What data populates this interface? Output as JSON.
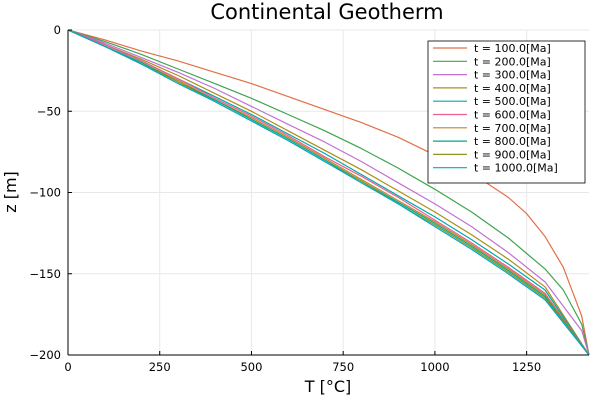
{
  "chart_data": {
    "type": "line",
    "title": "Continental Geotherm",
    "xlabel": "T [°C]",
    "ylabel": "z [m]",
    "xlim": [
      0,
      1420
    ],
    "ylim": [
      -200,
      0
    ],
    "xticks": [
      0,
      250,
      500,
      750,
      1000,
      1250
    ],
    "yticks": [
      0,
      -50,
      -100,
      -150,
      -200
    ],
    "xtick_labels": [
      "0",
      "250",
      "500",
      "750",
      "1000",
      "1250"
    ],
    "ytick_labels": [
      "0",
      "−50",
      "−100",
      "−150",
      "−200"
    ],
    "grid": true,
    "legend_position": "top-right",
    "series": [
      {
        "name": "t = 100.0[Ma]",
        "color": "#e26f46",
        "x": [
          0,
          100,
          200,
          300,
          400,
          500,
          600,
          700,
          800,
          900,
          1000,
          1100,
          1200,
          1250,
          1300,
          1350,
          1400,
          1420
        ],
        "z": [
          0,
          -6,
          -13,
          -19,
          -26,
          -33,
          -41,
          -49,
          -57,
          -66,
          -77,
          -88,
          -103,
          -113,
          -127,
          -146,
          -176,
          -200
        ]
      },
      {
        "name": "t = 200.0[Ma]",
        "color": "#3da44d",
        "x": [
          0,
          100,
          200,
          300,
          400,
          500,
          600,
          700,
          800,
          900,
          1000,
          1100,
          1200,
          1300,
          1350,
          1400,
          1420
        ],
        "z": [
          0,
          -7,
          -15,
          -24,
          -33,
          -42,
          -52,
          -62,
          -73,
          -85,
          -98,
          -112,
          -128,
          -147,
          -160,
          -181,
          -200
        ]
      },
      {
        "name": "t = 300.0[Ma]",
        "color": "#c271d2",
        "x": [
          0,
          100,
          200,
          300,
          400,
          500,
          600,
          700,
          800,
          900,
          1000,
          1100,
          1200,
          1300,
          1400,
          1420
        ],
        "z": [
          0,
          -8,
          -17,
          -26,
          -36,
          -47,
          -58,
          -69,
          -81,
          -94,
          -107,
          -121,
          -137,
          -155,
          -185,
          -200
        ]
      },
      {
        "name": "t = 400.0[Ma]",
        "color": "#ac8d18",
        "x": [
          0,
          100,
          200,
          300,
          400,
          500,
          600,
          700,
          800,
          900,
          1000,
          1100,
          1200,
          1300,
          1420
        ],
        "z": [
          0,
          -9,
          -18,
          -28,
          -39,
          -50,
          -62,
          -74,
          -86,
          -99,
          -112,
          -126,
          -141,
          -158,
          -200
        ]
      },
      {
        "name": "t = 500.0[Ma]",
        "color": "#00a9ad",
        "x": [
          0,
          100,
          200,
          300,
          400,
          500,
          600,
          700,
          800,
          900,
          1000,
          1100,
          1200,
          1300,
          1420
        ],
        "z": [
          0,
          -9,
          -19,
          -30,
          -41,
          -52,
          -64,
          -76,
          -89,
          -102,
          -115,
          -129,
          -144,
          -160,
          -200
        ]
      },
      {
        "name": "t = 600.0[Ma]",
        "color": "#ed5e93",
        "x": [
          0,
          100,
          200,
          300,
          400,
          500,
          600,
          700,
          800,
          900,
          1000,
          1100,
          1200,
          1300,
          1420
        ],
        "z": [
          0,
          -9,
          -19,
          -30,
          -42,
          -53,
          -65,
          -78,
          -90,
          -103,
          -117,
          -131,
          -146,
          -162,
          -200
        ]
      },
      {
        "name": "t = 700.0[Ma]",
        "color": "#c68225",
        "x": [
          0,
          100,
          200,
          300,
          400,
          500,
          600,
          700,
          800,
          900,
          1000,
          1100,
          1200,
          1300,
          1420
        ],
        "z": [
          0,
          -10,
          -20,
          -31,
          -43,
          -54,
          -66,
          -79,
          -92,
          -105,
          -118,
          -132,
          -147,
          -163,
          -200
        ]
      },
      {
        "name": "t = 800.0[Ma]",
        "color": "#00a98d",
        "x": [
          0,
          100,
          200,
          300,
          400,
          500,
          600,
          700,
          800,
          900,
          1000,
          1100,
          1200,
          1300,
          1420
        ],
        "z": [
          0,
          -10,
          -20,
          -32,
          -43,
          -55,
          -67,
          -80,
          -93,
          -106,
          -119,
          -133,
          -148,
          -164,
          -200
        ]
      },
      {
        "name": "t = 900.0[Ma]",
        "color": "#8e971e",
        "x": [
          0,
          100,
          200,
          300,
          400,
          500,
          600,
          700,
          800,
          900,
          1000,
          1100,
          1200,
          1300,
          1420
        ],
        "z": [
          0,
          -10,
          -21,
          -32,
          -44,
          -56,
          -68,
          -81,
          -93,
          -107,
          -120,
          -134,
          -149,
          -165,
          -200
        ]
      },
      {
        "name": "t = 1000.0[Ma]",
        "color": "#00a8cb",
        "x": [
          0,
          100,
          200,
          300,
          400,
          500,
          600,
          700,
          800,
          900,
          1000,
          1100,
          1200,
          1300,
          1420
        ],
        "z": [
          0,
          -10,
          -21,
          -33,
          -44,
          -56,
          -68,
          -81,
          -94,
          -107,
          -121,
          -135,
          -150,
          -166,
          -200
        ]
      }
    ]
  }
}
